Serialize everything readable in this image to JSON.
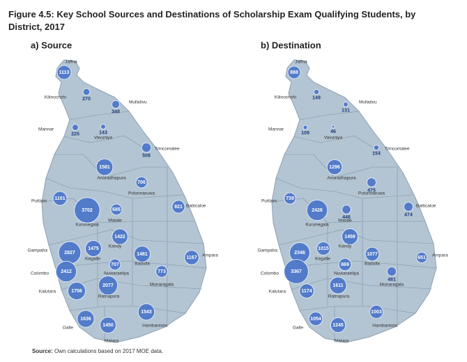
{
  "title": "Figure 4.5: Key School Sources and Destinations of Scholarship Exam Qualifying Students, by District, 2017",
  "chart_data": [
    {
      "type": "bubble_map",
      "title": "a) Source",
      "color": "#4a74c9",
      "categories": [
        "Jaffna",
        "Kilinochchi",
        "Mullativu",
        "Mannar",
        "Vavuniya",
        "Trincomalee",
        "Anuradhapura",
        "Polonnaruwa",
        "Puttlam",
        "Batticaloe",
        "Kurunegala",
        "Matale",
        "Kandy",
        "Gampaha",
        "Kegalle",
        "Nuwaraeliya",
        "Badulla",
        "Ampara",
        "Colombo",
        "Monaragala",
        "Kalutara",
        "Ratnapura",
        "Hambantota",
        "Galle",
        "Matara"
      ],
      "values": [
        1113,
        270,
        348,
        225,
        143,
        508,
        1581,
        706,
        1101,
        921,
        3702,
        685,
        1422,
        2827,
        1475,
        707,
        1481,
        1167,
        2412,
        773,
        1756,
        2077,
        1543,
        1636,
        1450
      ]
    },
    {
      "type": "bubble_map",
      "title": "b) Destination",
      "color": "#4a74c9",
      "categories": [
        "Jaffna",
        "Kilinochchi",
        "Mullativu",
        "Mannar",
        "Vavuniya",
        "Trincomalee",
        "Anuradhapura",
        "Polonnaruwa",
        "Puttlam",
        "Batticaloe",
        "Kurunegala",
        "Matale",
        "Kandy",
        "Gampaha",
        "Kegalle",
        "Nuwaraeliya",
        "Badulla",
        "Ampara",
        "Colombo",
        "Monaragala",
        "Kalutara",
        "Ratnapura",
        "Hambantota",
        "Galle",
        "Matara"
      ],
      "values": [
        888,
        149,
        131,
        109,
        46,
        154,
        1296,
        475,
        739,
        474,
        2426,
        446,
        1459,
        2346,
        1015,
        869,
        1077,
        651,
        3367,
        481,
        1174,
        1611,
        1003,
        1054,
        1245
      ]
    }
  ],
  "source_label": "Source:",
  "source_text": "Own calculations based on 2017 MOE data."
}
